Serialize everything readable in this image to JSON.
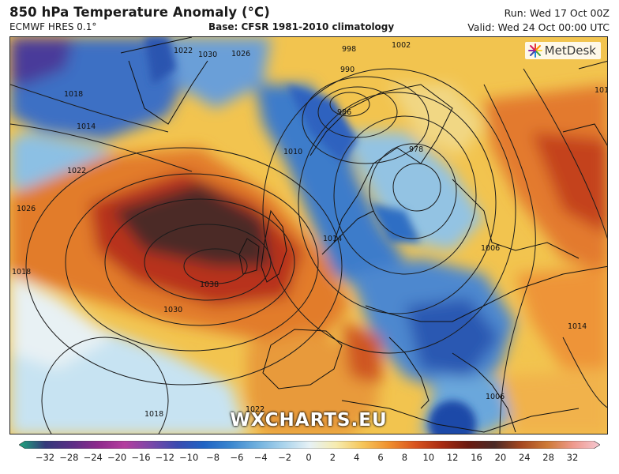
{
  "header": {
    "title": "850 hPa Temperature Anomaly (°C)",
    "model": "ECMWF HRES 0.1°",
    "base": "Base: CFSR 1981-2010 climatology",
    "run": "Run: Wed 17 Oct 00Z",
    "valid": "Valid: Wed 24 Oct 00:00 UTC"
  },
  "map": {
    "brand_logo": "MetDesk",
    "watermark": "WXCHARTS.EU",
    "isobar_labels": [
      "1002",
      "998",
      "990",
      "986",
      "978",
      "1026",
      "1022",
      "1030",
      "1018",
      "1014",
      "1022",
      "1026",
      "1018",
      "1038",
      "1030",
      "1014",
      "1010",
      "1006",
      "1014",
      "1022",
      "1018",
      "1006",
      "1018"
    ]
  },
  "colorbar": {
    "ticks": [
      "−32",
      "−28",
      "−24",
      "−20",
      "−16",
      "−12",
      "−10",
      "−8",
      "−6",
      "−4",
      "−2",
      "0",
      "2",
      "4",
      "6",
      "8",
      "10",
      "12",
      "16",
      "20",
      "24",
      "28",
      "32"
    ],
    "colors": [
      "#1fa77e",
      "#34397a",
      "#5b2f86",
      "#8e2a8c",
      "#b43e9e",
      "#7a48a8",
      "#3b4bb0",
      "#1f63c4",
      "#3a86cf",
      "#6fb0de",
      "#a9d3ec",
      "#e6f1f5",
      "#f6ecb0",
      "#f6c65a",
      "#f0902f",
      "#d9531e",
      "#a92b12",
      "#6b1a10",
      "#4a2a27",
      "#a5471f",
      "#ce7a36",
      "#ef9a8e",
      "#f5c8d2"
    ]
  }
}
